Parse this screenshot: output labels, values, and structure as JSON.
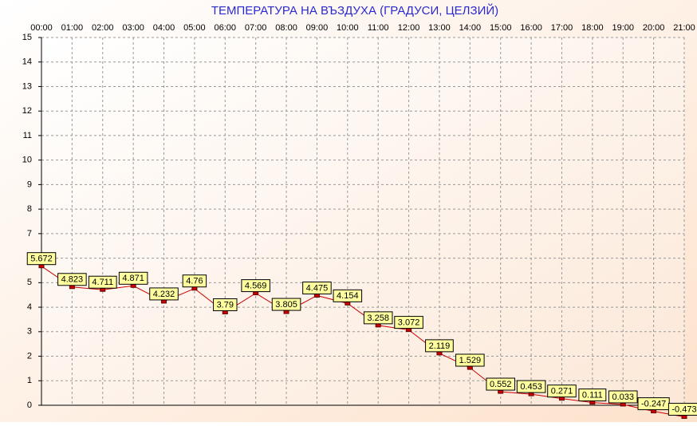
{
  "chart_data": {
    "type": "line",
    "title": "ТЕМПЕРАТУРА НА ВЪЗДУХА  (ГРАДУСИ, ЦЕЛЗИЙ)",
    "categories": [
      "00:00",
      "01:00",
      "02:00",
      "03:00",
      "04:00",
      "05:00",
      "06:00",
      "07:00",
      "08:00",
      "09:00",
      "10:00",
      "11:00",
      "12:00",
      "13:00",
      "14:00",
      "15:00",
      "16:00",
      "17:00",
      "18:00",
      "19:00",
      "20:00",
      "21:00"
    ],
    "values": [
      5.672,
      4.823,
      4.711,
      4.871,
      4.232,
      4.76,
      3.79,
      4.569,
      3.805,
      4.475,
      4.154,
      3.258,
      3.072,
      2.119,
      1.529,
      0.552,
      0.453,
      0.271,
      0.111,
      0.033,
      -0.247,
      -0.473
    ],
    "color": "#cc0000",
    "ylim": [
      0,
      15
    ],
    "yticks": [
      0,
      1,
      2,
      3,
      4,
      5,
      6,
      7,
      8,
      9,
      10,
      11,
      12,
      13,
      14,
      15
    ],
    "grid": true
  }
}
